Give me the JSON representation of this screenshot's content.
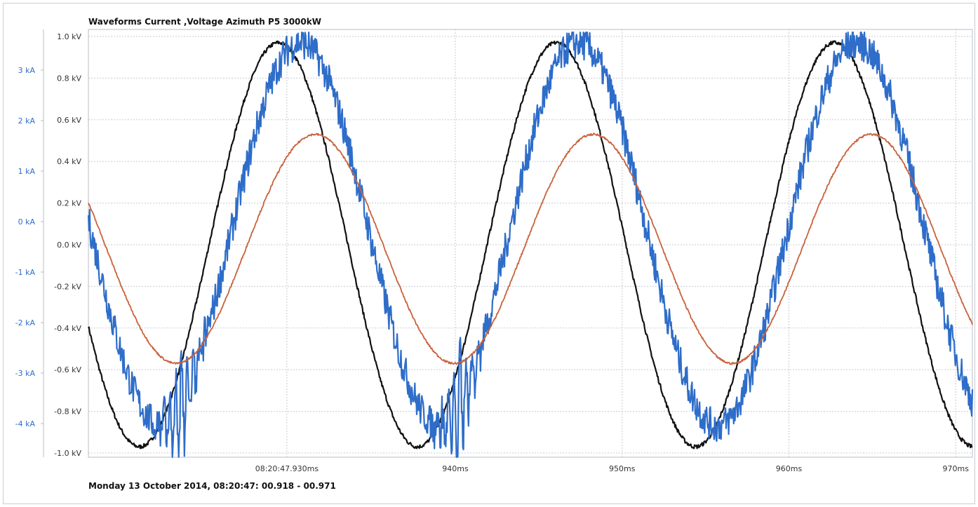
{
  "title": "Waveforms Current ,Voltage Azimuth P5 3000kW",
  "footer": "Monday 13 October 2014, 08:20:47: 00.918 - 00.971",
  "chart_data": {
    "type": "line",
    "title": "Waveforms Current ,Voltage Azimuth P5 3000kW",
    "x_unit": "ms",
    "xlim": [
      918,
      971
    ],
    "x_tick_values": [
      929.9,
      940,
      950,
      960,
      970
    ],
    "x_tick_labels": [
      "08:20:47.930ms",
      "940ms",
      "950ms",
      "960ms",
      "970ms"
    ],
    "voltage_axis": {
      "unit": "kV",
      "ylim": [
        -1.0,
        1.0
      ],
      "tick_values": [
        1.0,
        0.8,
        0.6,
        0.4,
        0.2,
        0.0,
        -0.2,
        -0.4,
        -0.6,
        -0.8,
        -1.0
      ],
      "tick_labels": [
        "1.0 kV",
        "0.8 kV",
        "0.6 kV",
        "0.4 kV",
        "0.2 kV",
        "0.0 kV",
        "-0.2 kV",
        "-0.4 kV",
        "-0.6 kV",
        "-0.8 kV",
        "-1.0 kV"
      ]
    },
    "current_axis": {
      "unit": "kA",
      "tick_values": [
        3,
        2,
        1,
        0,
        -1,
        -2,
        -3,
        -4
      ],
      "tick_labels": [
        "3 kA",
        "2 kA",
        "1 kA",
        "0 kA",
        "-1 kA",
        "-2 kA",
        "-3 kA",
        "-4 kA"
      ]
    },
    "grid": true,
    "series": [
      {
        "color": "#111111",
        "axis": "voltage",
        "period_ms": 16.67,
        "amplitude": 0.97,
        "offset": 0.0,
        "peak_times_ms": [
          929.4,
          946.1,
          962.8
        ],
        "noise": 0.004
      },
      {
        "color": "#2e6dc9",
        "axis": "voltage",
        "period_ms": 16.67,
        "amplitude": 0.92,
        "offset": 0.05,
        "peak_times_ms": [
          930.7,
          947.4,
          964.1
        ],
        "noise": 0.02,
        "spike_times_ms": [
          923.5,
          940.2
        ]
      },
      {
        "color": "#c8623c",
        "axis": "voltage",
        "period_ms": 16.67,
        "amplitude": 0.55,
        "offset": -0.02,
        "peak_times_ms": [
          931.6,
          948.3,
          965.0
        ],
        "noise": 0.002
      }
    ]
  }
}
